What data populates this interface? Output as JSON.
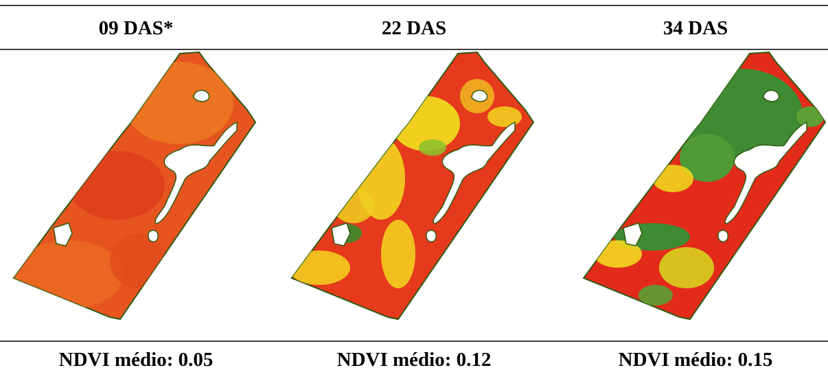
{
  "panels": [
    {
      "title": "09 DAS*",
      "caption": "NDVI médio: 0.05"
    },
    {
      "title": "22 DAS",
      "caption": "NDVI médio: 0.12"
    },
    {
      "title": "34 DAS",
      "caption": "NDVI médio: 0.15"
    }
  ]
}
